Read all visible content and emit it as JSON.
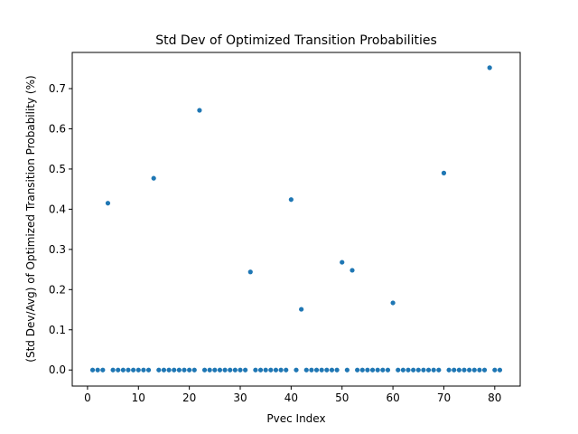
{
  "chart_data": {
    "type": "scatter",
    "title": "Std Dev of Optimized Transition Probabilities",
    "xlabel": "Pvec Index",
    "ylabel": "(Std Dev/Avg) of Optimized Transition Probability (%)",
    "xlim": [
      -3,
      85
    ],
    "ylim": [
      -0.04,
      0.79
    ],
    "xticks": [
      0,
      10,
      20,
      30,
      40,
      50,
      60,
      70,
      80
    ],
    "yticks": [
      0.0,
      0.1,
      0.2,
      0.3,
      0.4,
      0.5,
      0.6,
      0.7
    ],
    "xtick_labels": [
      "0",
      "10",
      "20",
      "30",
      "40",
      "50",
      "60",
      "70",
      "80"
    ],
    "ytick_labels": [
      "0.0",
      "0.1",
      "0.2",
      "0.3",
      "0.4",
      "0.5",
      "0.6",
      "0.7"
    ],
    "grid": false,
    "legend": "none",
    "marker_color": "#1f77b4",
    "series": [
      {
        "x": [
          1,
          2,
          3,
          4,
          5,
          6,
          7,
          8,
          9,
          10,
          11,
          12,
          13,
          14,
          15,
          16,
          17,
          18,
          19,
          20,
          21,
          22,
          23,
          24,
          25,
          26,
          27,
          28,
          29,
          30,
          31,
          32,
          33,
          34,
          35,
          36,
          37,
          38,
          39,
          40,
          41,
          42,
          43,
          44,
          45,
          46,
          47,
          48,
          49,
          50,
          51,
          52,
          53,
          54,
          55,
          56,
          57,
          58,
          59,
          60,
          61,
          62,
          63,
          64,
          65,
          66,
          67,
          68,
          69,
          70,
          71,
          72,
          73,
          74,
          75,
          76,
          77,
          78,
          79,
          80,
          81
        ],
        "y": [
          0,
          0,
          0,
          0.415,
          0,
          0,
          0,
          0,
          0,
          0,
          0,
          0,
          0.477,
          0,
          0,
          0,
          0,
          0,
          0,
          0,
          0,
          0.646,
          0,
          0,
          0,
          0,
          0,
          0,
          0,
          0,
          0,
          0.244,
          0,
          0,
          0,
          0,
          0,
          0,
          0,
          0.424,
          0,
          0.151,
          0,
          0,
          0,
          0,
          0,
          0,
          0,
          0.268,
          0,
          0.248,
          0,
          0,
          0,
          0,
          0,
          0,
          0,
          0.167,
          0,
          0,
          0,
          0,
          0,
          0,
          0,
          0,
          0,
          0.49,
          0,
          0,
          0,
          0,
          0,
          0,
          0,
          0,
          0.752,
          0,
          0
        ]
      }
    ]
  }
}
